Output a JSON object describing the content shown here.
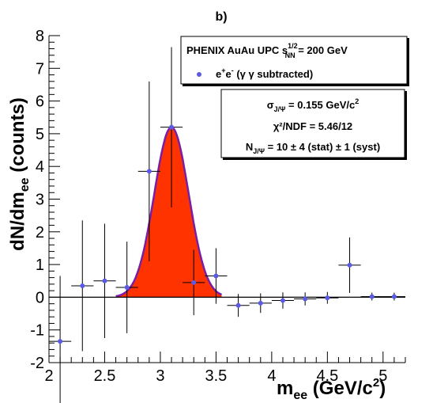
{
  "panel_label": "b)",
  "legend": {
    "header_main": "PHENIX AuAu UPC s",
    "header_sup": "1/2",
    "header_sub": "NN",
    "header_tail": " = 200 GeV",
    "series_label_pre": "e",
    "series_label_mid": "e",
    "series_label_post": " (γ γ subtracted)"
  },
  "fit_box": {
    "line1_pre": "σ",
    "line1_sub": "J/Ψ",
    "line1_post": " = 0.155 GeV/c",
    "line1_sup": "2",
    "line2": "χ²/NDF = 5.46/12",
    "line3_pre": "N",
    "line3_sub": "J/Ψ",
    "line3_post": " = 10 ± 4 (stat) ± 1 (syst)"
  },
  "colors": {
    "points": "#5a5ae6",
    "fill": "#ff3300",
    "fit_line": "#7a1fa3"
  },
  "chart_data": {
    "type": "scatter",
    "title": "b)",
    "xlabel": "m_ee (GeV/c²)",
    "ylabel": "dN/dm_ee (counts)",
    "xlim": [
      2.0,
      5.2
    ],
    "ylim": [
      -2,
      8
    ],
    "x_ticks": [
      "2",
      "2.5",
      "3",
      "3.5",
      "4",
      "4.5",
      "5"
    ],
    "y_ticks": [
      "-2",
      "-1",
      "0",
      "1",
      "2",
      "3",
      "4",
      "5",
      "6",
      "7",
      "8"
    ],
    "series": [
      {
        "name": "e+e- (γ γ subtracted)",
        "points": [
          {
            "x": 2.1,
            "y": -1.35,
            "err_low": 2.0,
            "err_high": 2.0,
            "x_err": 0.1
          },
          {
            "x": 2.3,
            "y": 0.35,
            "err_low": 2.0,
            "err_high": 2.0,
            "x_err": 0.1
          },
          {
            "x": 2.5,
            "y": 0.5,
            "err_low": 1.75,
            "err_high": 1.75,
            "x_err": 0.1
          },
          {
            "x": 2.7,
            "y": 0.3,
            "err_low": 1.4,
            "err_high": 1.4,
            "x_err": 0.1
          },
          {
            "x": 2.9,
            "y": 3.85,
            "err_low": 2.75,
            "err_high": 2.75,
            "x_err": 0.1
          },
          {
            "x": 3.1,
            "y": 5.2,
            "err_low": 2.45,
            "err_high": 2.45,
            "x_err": 0.1
          },
          {
            "x": 3.3,
            "y": 0.45,
            "err_low": 1.0,
            "err_high": 1.0,
            "x_err": 0.1
          },
          {
            "x": 3.5,
            "y": 0.65,
            "err_low": 0.85,
            "err_high": 0.85,
            "x_err": 0.1
          },
          {
            "x": 3.7,
            "y": -0.25,
            "err_low": 0.35,
            "err_high": 0.35,
            "x_err": 0.1
          },
          {
            "x": 3.9,
            "y": -0.18,
            "err_low": 0.3,
            "err_high": 0.3,
            "x_err": 0.1
          },
          {
            "x": 4.1,
            "y": -0.1,
            "err_low": 0.25,
            "err_high": 0.25,
            "x_err": 0.1
          },
          {
            "x": 4.3,
            "y": -0.05,
            "err_low": 0.2,
            "err_high": 0.2,
            "x_err": 0.1
          },
          {
            "x": 4.5,
            "y": -0.02,
            "err_low": 0.18,
            "err_high": 0.18,
            "x_err": 0.1
          },
          {
            "x": 4.7,
            "y": 0.98,
            "err_low": 0.85,
            "err_high": 0.85,
            "x_err": 0.1
          },
          {
            "x": 4.9,
            "y": 0.02,
            "err_low": 0.12,
            "err_high": 0.12,
            "x_err": 0.1
          },
          {
            "x": 5.1,
            "y": 0.02,
            "err_low": 0.12,
            "err_high": 0.12,
            "x_err": 0.1
          }
        ]
      }
    ],
    "fit": {
      "type": "gaussian",
      "mean": 3.1,
      "sigma": 0.155,
      "amplitude": 5.2,
      "x_range": [
        2.6,
        3.55
      ]
    },
    "grid": false,
    "legend_position": "top-right"
  }
}
